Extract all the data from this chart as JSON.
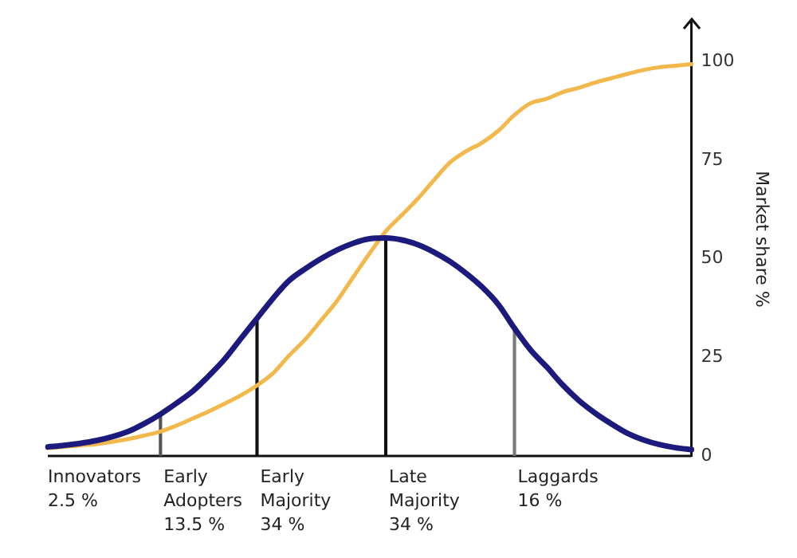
{
  "chart_data": {
    "type": "line",
    "ylabel": "Market share %",
    "categories": [
      null,
      null,
      null,
      null,
      null,
      null,
      null,
      null,
      null,
      null,
      null,
      null,
      null,
      null,
      null,
      null,
      null,
      null,
      null,
      null,
      null,
      null,
      null,
      null,
      null,
      null,
      null,
      null,
      null,
      null,
      null,
      null,
      null,
      null,
      null,
      null,
      null,
      null,
      null,
      null,
      null
    ],
    "ylim": [
      0,
      110
    ],
    "yticks": [
      0,
      25,
      50,
      75,
      100
    ],
    "tick_labels": "y",
    "grid": false,
    "marker": "none",
    "line_style": "solid",
    "series": [
      {
        "color": "#1c1a7c",
        "values": [
          2.3,
          2.7,
          3.2,
          3.9,
          4.9,
          6.2,
          8.2,
          10.6,
          13.4,
          16.4,
          20.3,
          24.6,
          29.8,
          34.9,
          40,
          44.5,
          47.5,
          50.1,
          52.3,
          54,
          55.1,
          55.3,
          54.8,
          53.6,
          51.7,
          49.3,
          46.3,
          42.8,
          38.4,
          32.4,
          26.9,
          22.6,
          18,
          14.1,
          10.9,
          8.2,
          5.8,
          4.1,
          2.9,
          2.1,
          1.6
        ]
      },
      {
        "color": "#f2b84b",
        "values": [
          2,
          2.3,
          2.7,
          3,
          3.6,
          4.3,
          5.2,
          6.2,
          7.7,
          9.5,
          11.3,
          13.3,
          15.4,
          17.9,
          21,
          25.5,
          29.6,
          34.5,
          39.5,
          45.5,
          51.4,
          57,
          61.1,
          65.3,
          70,
          74.5,
          77.3,
          79.5,
          82.5,
          86.5,
          89.5,
          90.6,
          92.3,
          93.4,
          94.7,
          95.8,
          96.9,
          97.9,
          98.6,
          99,
          99.4
        ]
      },
      {
        "type": "bar",
        "color": "#111111",
        "colors": [
          null,
          null,
          null,
          null,
          null,
          null,
          null,
          "#555555",
          null,
          null,
          null,
          null,
          null,
          "#111111",
          null,
          null,
          null,
          null,
          null,
          null,
          null,
          "#111111",
          null,
          null,
          null,
          null,
          null,
          null,
          null,
          "#777777",
          null,
          null,
          null,
          null,
          null,
          null,
          null,
          null,
          null,
          null,
          null
        ],
        "values": [
          null,
          null,
          null,
          null,
          null,
          null,
          null,
          10.6,
          null,
          null,
          null,
          null,
          null,
          34.9,
          null,
          null,
          null,
          null,
          null,
          null,
          null,
          55.3,
          null,
          null,
          null,
          null,
          null,
          null,
          null,
          32.4,
          null,
          null,
          null,
          null,
          null,
          null,
          null,
          null,
          null,
          null,
          null
        ]
      }
    ],
    "annotations": [
      "Innovators\n2.5 %",
      "Early\nAdopters\n13.5 %",
      "Early\nMajority\n34 %",
      "Late\nMajority\n34 %",
      "Laggards\n16 %"
    ]
  }
}
